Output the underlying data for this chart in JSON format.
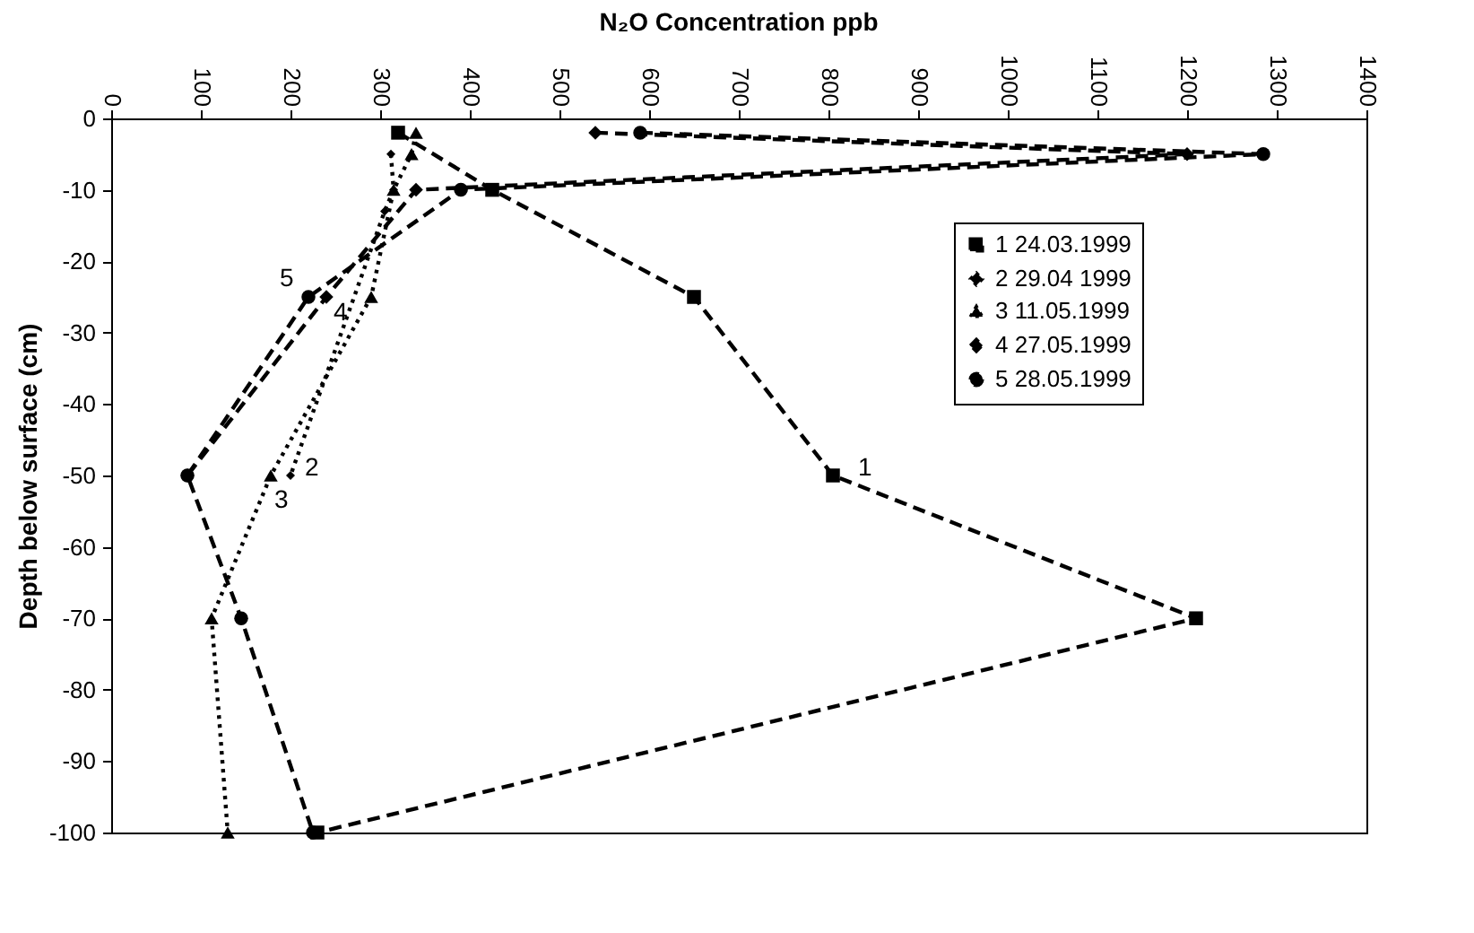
{
  "chart_data": {
    "type": "line",
    "title": "N₂O Concentration ppb",
    "ylabel": "Depth below surface (cm)",
    "xlim": [
      0,
      1400
    ],
    "xticks": [
      0,
      100,
      200,
      300,
      400,
      500,
      600,
      700,
      800,
      900,
      1000,
      1100,
      1200,
      1300,
      1400
    ],
    "ylim": [
      -100,
      0
    ],
    "yticks": [
      -100,
      -90,
      -80,
      -70,
      -60,
      -50,
      -40,
      -30,
      -20,
      -10,
      0
    ],
    "legend": "top right",
    "grid": false,
    "series": [
      {
        "name": "1 24.03.1999",
        "color": "#000000",
        "marker": "square",
        "line_style": "dashed",
        "x": [
          320,
          425,
          650,
          805,
          1210,
          230
        ],
        "values": [
          -2,
          -10,
          -25,
          -50,
          -70,
          -100
        ]
      },
      {
        "name": "2 29.04 1999",
        "color": "#000000",
        "marker": "diamond",
        "line_style": "dotted",
        "x": [
          312,
          315,
          305,
          200
        ],
        "values": [
          -5,
          -10,
          -13,
          -50
        ]
      },
      {
        "name": "3 11.05.1999",
        "color": "#000000",
        "marker": "triangle",
        "line_style": "dotted",
        "x": [
          340,
          335,
          315,
          290,
          178,
          112,
          130
        ],
        "values": [
          -2,
          -5,
          -10,
          -25,
          -50,
          -70,
          -100
        ]
      },
      {
        "name": "4 27.05.1999",
        "color": "#000000",
        "marker": "diamond",
        "line_style": "dashed",
        "x": [
          540,
          1200,
          340,
          240,
          85
        ],
        "values": [
          -2,
          -5,
          -10,
          -25,
          -50
        ]
      },
      {
        "name": "5 28.05.1999",
        "color": "#000000",
        "marker": "circle",
        "line_style": "dashed",
        "x": [
          590,
          1285,
          390,
          220,
          85,
          145,
          225
        ],
        "values": [
          -2,
          -5,
          -10,
          -25,
          -50,
          -70,
          -100
        ]
      }
    ],
    "annotations": [
      {
        "text": "1",
        "x": 805,
        "y": -50
      },
      {
        "text": "2",
        "x": 200,
        "y": -50
      },
      {
        "text": "3",
        "x": 178,
        "y": -50
      },
      {
        "text": "4",
        "x": 240,
        "y": -25
      },
      {
        "text": "5",
        "x": 220,
        "y": -25
      }
    ]
  }
}
